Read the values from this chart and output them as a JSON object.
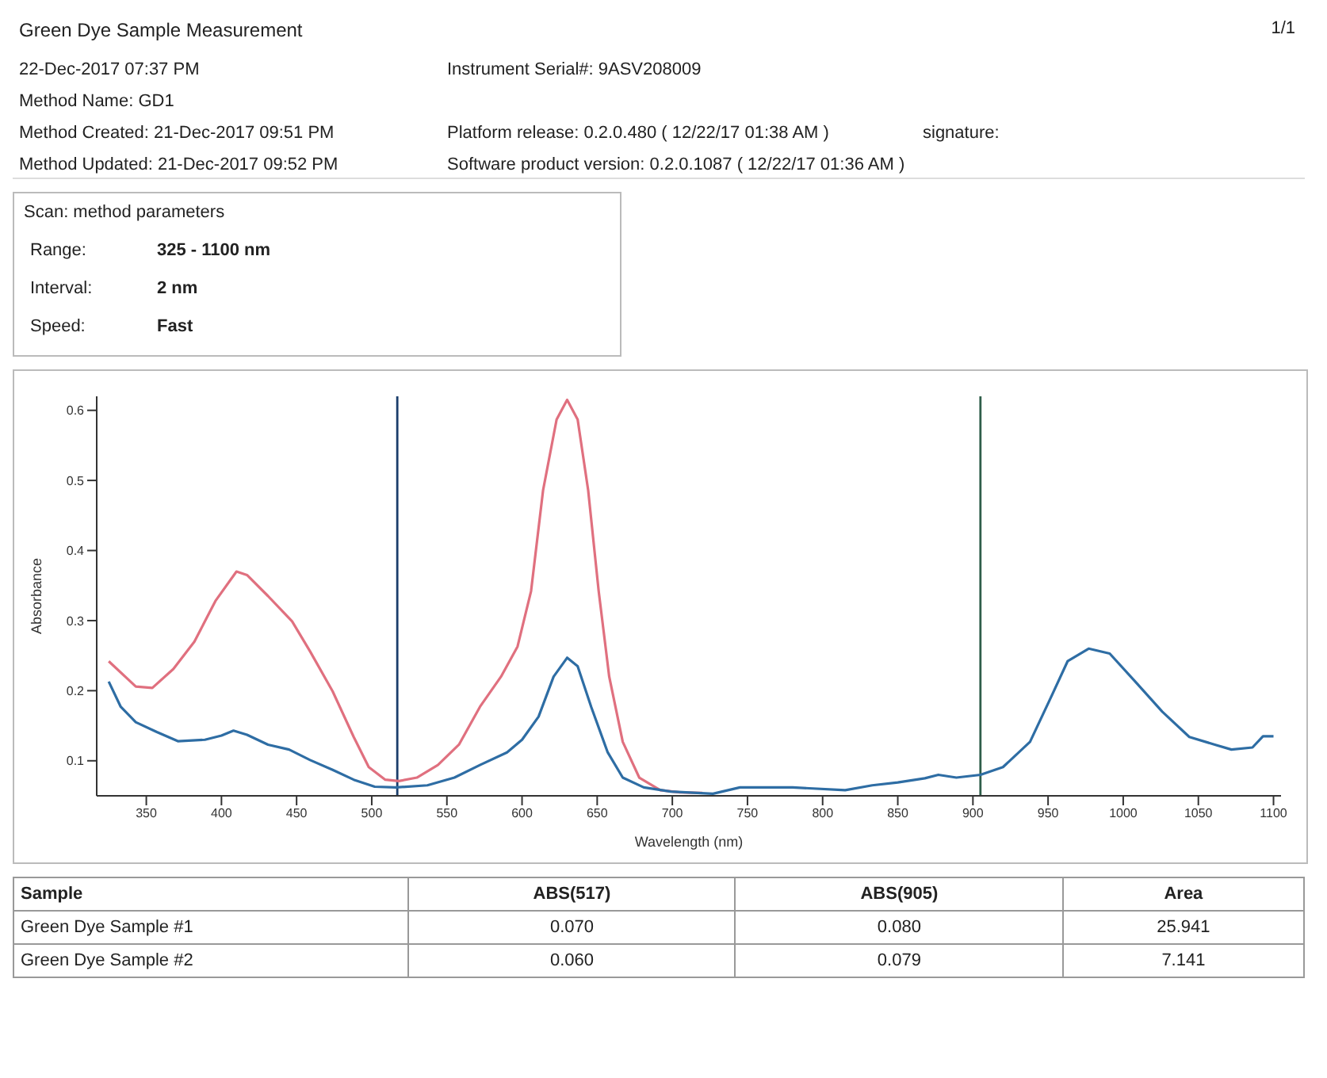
{
  "chart_data": [
    {
      "type": "other",
      "title": "Green Dye Sample Measurement",
      "annotations": [
        "1/1",
        "22-Dec-2017 07:37 PM",
        "Method Name: GD1",
        "Method Created: 21-Dec-2017 09:51 PM",
        "Method Updated: 21-Dec-2017 09:52 PM",
        "Instrument Serial#: 9ASV208009",
        "Platform release: 0.2.0.480 ( 12/22/17 01:38 AM )",
        "Software product version: 0.2.0.1087 ( 12/22/17 01:36 AM )",
        "signature:"
      ]
    },
    {
      "type": "other",
      "title": "Scan: method parameters",
      "annotations": [
        "Range:",
        "325 - 1100 nm",
        "Interval:",
        "2 nm",
        "Speed:",
        "Fast"
      ]
    },
    {
      "type": "line",
      "xlabel": "Wavelength (nm)",
      "ylabel": "Absorbance",
      "xlim": [
        317,
        1105
      ],
      "xticks": [
        350,
        400,
        450,
        500,
        550,
        600,
        650,
        700,
        750,
        800,
        850,
        900,
        950,
        1000,
        1050,
        1100
      ],
      "ylim": [
        0.05,
        0.62
      ],
      "yticks": [
        0.1,
        0.2,
        0.3,
        0.4,
        0.5,
        0.6
      ],
      "marker": "none",
      "line_style": "solid",
      "grid": false,
      "ref_lines": [
        {
          "axis": "x",
          "value": 517,
          "color": "#1a3d6b"
        },
        {
          "axis": "x",
          "value": 905,
          "color": "#2f5e4a"
        }
      ],
      "series": [
        {
          "color": "#e0707f",
          "x": [
            325,
            343,
            354,
            368,
            382,
            396,
            410,
            417,
            431,
            447,
            459,
            474,
            488,
            498,
            509,
            518,
            530,
            544,
            558,
            572,
            586,
            597,
            606,
            614,
            623,
            630,
            637,
            644,
            651,
            658,
            667,
            678,
            692,
            705,
            720
          ],
          "values": [
            0.242,
            0.206,
            0.204,
            0.231,
            0.27,
            0.328,
            0.37,
            0.365,
            0.335,
            0.299,
            0.256,
            0.199,
            0.134,
            0.091,
            0.073,
            0.071,
            0.076,
            0.094,
            0.123,
            0.177,
            0.22,
            0.263,
            0.342,
            0.486,
            0.587,
            0.615,
            0.587,
            0.486,
            0.342,
            0.22,
            0.127,
            0.076,
            0.058,
            0.055,
            0.054
          ]
        },
        {
          "color": "#2e6da4",
          "x": [
            325,
            333,
            343,
            357,
            371,
            389,
            400,
            408,
            417,
            431,
            445,
            459,
            474,
            488,
            502,
            516,
            537,
            555,
            572,
            590,
            600,
            611,
            621,
            630,
            637,
            646,
            657,
            667,
            681,
            699,
            709,
            727,
            745,
            780,
            815,
            833,
            850,
            868,
            877,
            889,
            905,
            920,
            938,
            952,
            963,
            977,
            991,
            1008,
            1026,
            1044,
            1061,
            1072,
            1086,
            1093,
            1100
          ],
          "values": [
            0.213,
            0.177,
            0.155,
            0.141,
            0.128,
            0.13,
            0.136,
            0.143,
            0.137,
            0.123,
            0.116,
            0.101,
            0.087,
            0.073,
            0.063,
            0.062,
            0.065,
            0.076,
            0.094,
            0.112,
            0.13,
            0.163,
            0.22,
            0.247,
            0.235,
            0.177,
            0.112,
            0.076,
            0.062,
            0.056,
            0.055,
            0.053,
            0.062,
            0.062,
            0.058,
            0.065,
            0.069,
            0.075,
            0.08,
            0.076,
            0.08,
            0.091,
            0.127,
            0.191,
            0.242,
            0.26,
            0.253,
            0.213,
            0.17,
            0.134,
            0.123,
            0.116,
            0.119,
            0.135,
            0.135
          ]
        }
      ]
    },
    {
      "type": "other",
      "xlabel": "Sample",
      "categories": [
        "Green Dye Sample #1",
        "Green Dye Sample #2"
      ],
      "series": [
        {
          "name": "ABS(517)",
          "values": [
            0.07,
            0.06
          ],
          "value_labels": [
            "0.070",
            "0.060"
          ]
        },
        {
          "name": "ABS(905)",
          "values": [
            0.08,
            0.079
          ],
          "value_labels": [
            "0.080",
            "0.079"
          ]
        },
        {
          "name": "Area",
          "values": [
            25.941,
            7.141
          ],
          "value_labels": [
            "25.941",
            "7.141"
          ]
        }
      ]
    }
  ]
}
